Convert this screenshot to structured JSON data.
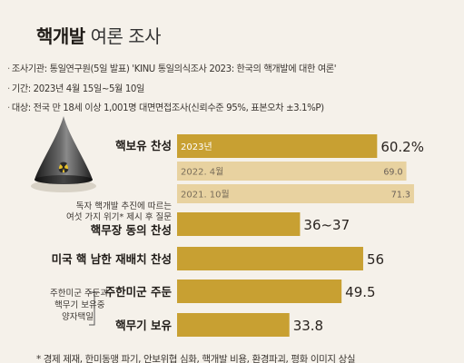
{
  "header": {
    "title_bold": "핵개발",
    "title_light": "여론 조사"
  },
  "meta": [
    "조사기관: 통일연구원(5일 발표) 'KINU 통일의식조사 2023: 한국의 핵개발에 대한 여론'",
    "기간: 2023년 4월 15일~5월 10일",
    "대상: 전국 만 18세 이상 1,001명 대면면접조사(신뢰수준 95%, 표본오차 ±3.1%P)"
  ],
  "chart_data": {
    "type": "bar",
    "orientation": "horizontal",
    "xlim": [
      0,
      100
    ],
    "groups": [
      {
        "label": "핵보유 찬성",
        "bars": [
          {
            "period": "2023년",
            "value": 60.2,
            "display": "60.2%",
            "color": "#c8a032"
          },
          {
            "period": "2022. 4월",
            "value": 69.0,
            "display": "69.0",
            "color": "#e8d2a0"
          },
          {
            "period": "2021. 10월",
            "value": 71.3,
            "display": "71.3",
            "color": "#e8d2a0"
          }
        ]
      },
      {
        "label": "핵무장 동의 찬성",
        "sublabel_lines": [
          "독자 핵개발 추진에 따르는",
          "여섯 가지 위기* 제시 후 질문"
        ],
        "range": [
          36,
          37
        ],
        "display": "36~37",
        "color": "#c8a032"
      },
      {
        "label": "미국 핵 남한 재배치 찬성",
        "value": 56,
        "display": "56",
        "color": "#c8a032"
      },
      {
        "label": "주한미군 주둔",
        "value": 49.5,
        "display": "49.5",
        "color": "#c8a032",
        "bracket_lines": [
          "주한미군 주둔과",
          "핵무기 보유중",
          "양자택일"
        ]
      },
      {
        "label": "핵무기 보유",
        "value": 33.8,
        "display": "33.8",
        "color": "#c8a032"
      }
    ]
  },
  "colors": {
    "primary_bar": "#c8a032",
    "secondary_bar": "#e8d2a0",
    "background": "#f5f1ea",
    "cone_body": "#3a3a3a",
    "trefoil": "#e8c22a"
  },
  "icons": {
    "illustration": "nuclear-warhead-cone-icon"
  },
  "footnote": "* 경제 제재, 한미동맹 파기, 안보위협 심화, 핵개발 비용, 환경파괴, 평화 이미지 상실"
}
